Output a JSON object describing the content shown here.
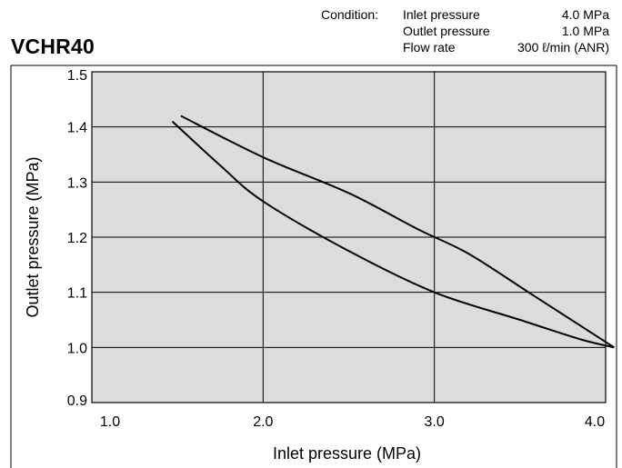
{
  "chart_data": {
    "type": "line",
    "title": "VCHR40",
    "xlabel": "Inlet pressure (MPa)",
    "ylabel": "Outlet pressure (MPa)",
    "xlim": [
      1.0,
      4.0
    ],
    "ylim": [
      0.9,
      1.5
    ],
    "x_ticks": [
      "1.0",
      "2.0",
      "3.0",
      "4.0"
    ],
    "y_ticks": [
      "0.9",
      "1.0",
      "1.1",
      "1.2",
      "1.3",
      "1.4",
      "1.5"
    ],
    "grid": true,
    "background": "#dcdcdc",
    "line_color": "#000000",
    "series": [
      {
        "values": [
          [
            1.52,
            1.42
          ],
          [
            2.0,
            1.345
          ],
          [
            2.5,
            1.28
          ],
          [
            2.9,
            1.215
          ],
          [
            3.2,
            1.17
          ],
          [
            3.55,
            1.1
          ],
          [
            3.85,
            1.04
          ],
          [
            4.05,
            1.0
          ]
        ]
      },
      {
        "values": [
          [
            1.47,
            1.41
          ],
          [
            1.75,
            1.33
          ],
          [
            2.0,
            1.265
          ],
          [
            2.5,
            1.175
          ],
          [
            3.0,
            1.1
          ],
          [
            3.5,
            1.05
          ],
          [
            3.85,
            1.015
          ],
          [
            4.05,
            1.0
          ]
        ]
      }
    ],
    "condition": {
      "label": "Condition:",
      "items": [
        {
          "name": "Inlet pressure",
          "value": "4.0 MPa"
        },
        {
          "name": "Outlet pressure",
          "value": "1.0 MPa"
        },
        {
          "name": "Flow rate",
          "value": "300 ℓ/min (ANR)"
        }
      ]
    }
  }
}
